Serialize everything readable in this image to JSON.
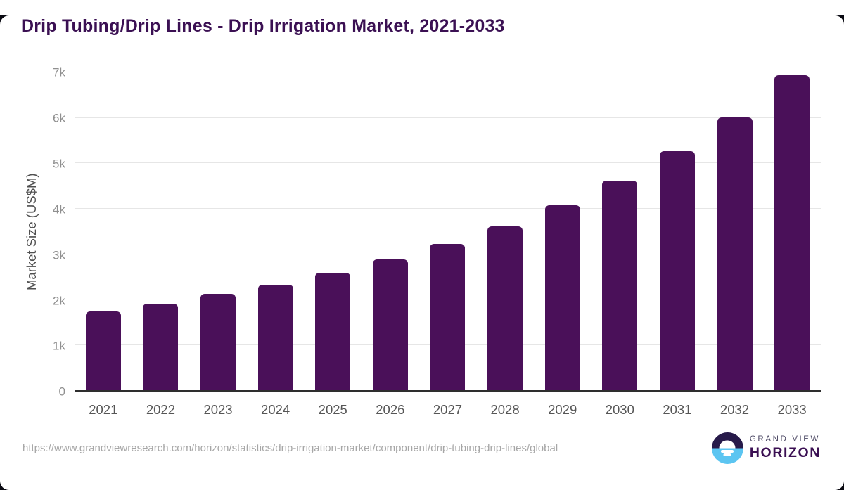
{
  "page": {
    "title": "Drip Tubing/Drip Lines - Drip Irrigation Market, 2021-2033"
  },
  "chart_data": {
    "type": "bar",
    "title": "Drip Tubing/Drip Lines - Drip Irrigation Market, 2021-2033",
    "categories": [
      "2021",
      "2022",
      "2023",
      "2024",
      "2025",
      "2026",
      "2027",
      "2028",
      "2029",
      "2030",
      "2031",
      "2032",
      "2033"
    ],
    "values": [
      1740,
      1910,
      2120,
      2330,
      2590,
      2880,
      3220,
      3610,
      4080,
      4620,
      5270,
      6020,
      6940
    ],
    "xlabel": "",
    "ylabel": "Market Size (US$M)",
    "ylim": [
      0,
      7000
    ],
    "yticks": [
      {
        "label": "0",
        "value": 0
      },
      {
        "label": "1k",
        "value": 1000
      },
      {
        "label": "2k",
        "value": 2000
      },
      {
        "label": "3k",
        "value": 3000
      },
      {
        "label": "4k",
        "value": 4000
      },
      {
        "label": "5k",
        "value": 5000
      },
      {
        "label": "6k",
        "value": 6000
      },
      {
        "label": "7k",
        "value": 7000
      }
    ],
    "grid": true,
    "legend": "none",
    "bar_color": "#4a1059"
  },
  "footer": {
    "source_url": "https://www.grandviewresearch.com/horizon/statistics/drip-irrigation-market/component/drip-tubing-drip-lines/global",
    "logo": {
      "brand_top": "GRAND VIEW",
      "brand_bottom": "HORIZON"
    }
  },
  "colors": {
    "bar": "#4a1059",
    "title_text": "#3b1053",
    "gridline": "#e6e6e6",
    "axis_line": "#2e2e2e",
    "y_tick_text": "#8f8f8f",
    "axis_title_text": "#4f4f4f",
    "x_tick_text": "#565656",
    "url_text": "#a6a6a6",
    "logo_dark": "#271a4a",
    "logo_blue": "#5cc5f1",
    "logo_gray_text": "#4b4763"
  }
}
